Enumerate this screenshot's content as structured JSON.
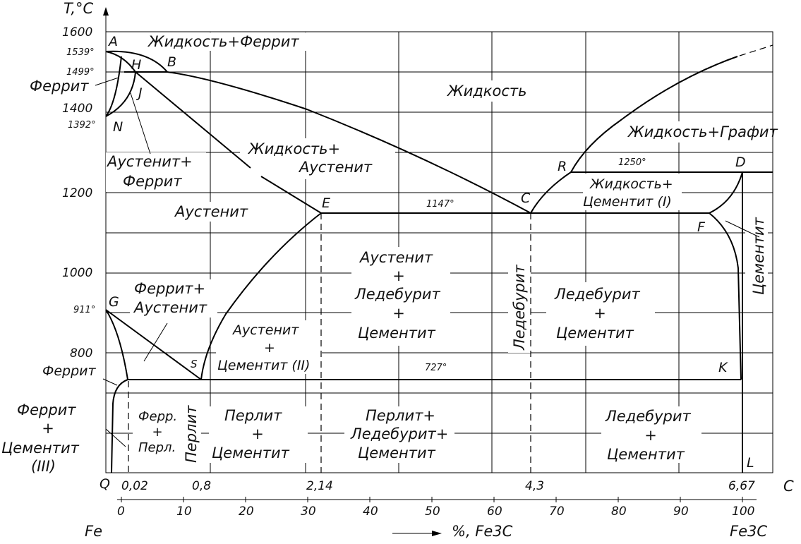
{
  "axes": {
    "y_title": "T,°C",
    "y_ticks": [
      "1600",
      "1400",
      "1200",
      "1000",
      "800"
    ],
    "y_special": [
      "1539°",
      "1499°",
      "1392°",
      "911°"
    ],
    "top_ticks": [
      "0,02",
      "0,8",
      "2,14",
      "4,3",
      "6,67"
    ],
    "top_unit": "C",
    "bottom_ticks": [
      "0",
      "10",
      "20",
      "30",
      "40",
      "50",
      "60",
      "70",
      "80",
      "90",
      "100"
    ],
    "left_label": "Fe",
    "bottom_label": "%, Fe3C",
    "right_label": "Fe3C"
  },
  "points": {
    "A": "A",
    "B": "B",
    "H": "H",
    "J": "J",
    "N": "N",
    "E": "E",
    "C": "C",
    "R": "R",
    "D": "D",
    "F": "F",
    "G": "G",
    "S": "S",
    "K": "K",
    "Q": "Q",
    "L": "L"
  },
  "temps": {
    "t1250": "1250°",
    "t1147": "1147°",
    "t727": "727°"
  },
  "regions": {
    "liquid_ferrite": "Жидкость+Феррит",
    "liquid": "Жидкость",
    "liquid_graphite": "Жидкость+Графит",
    "ferrite_top": "Феррит",
    "austenite_ferrite_1": "Аустенит+",
    "austenite_ferrite_2": "Феррит",
    "liquid_austenite_1": "Жидкость+",
    "liquid_austenite_2": "Аустенит",
    "liquid_cementite_1": "Жидкость+",
    "liquid_cementite_2": "Цементит (I)",
    "austenite": "Аустенит",
    "cementite_vertical": "Цементит",
    "aust_led_cem_1": "Аустенит",
    "plus": "+",
    "aust_led_cem_2": "Ледебурит",
    "aust_led_cem_3": "Цементит",
    "ledeburite_vertical": "Ледебурит",
    "led_cem_upper_1": "Ледебурит",
    "led_cem_upper_2": "Цементит",
    "ferrite_austenite_1": "Феррит+",
    "ferrite_austenite_2": "Аустенит",
    "aust_cem2_1": "Аустенит",
    "aust_cem2_2": "Цементит (II)",
    "ferrite_low": "Феррит",
    "fc3_1": "Феррит",
    "fc3_2": "Цементит",
    "fc3_3": "(III)",
    "ferr_perl_1": "Ферр.",
    "ferr_perl_2": "Перл.",
    "perlite_vertical": "Перлит",
    "perl_cem_1": "Перлит",
    "perl_cem_2": "Цементит",
    "perl_led_cem_1": "Перлит+",
    "perl_led_cem_2": "Ледебурит+",
    "perl_led_cem_3": "Цементит",
    "led_cem_lower_1": "Ледебурит",
    "led_cem_lower_2": "Цементит"
  }
}
